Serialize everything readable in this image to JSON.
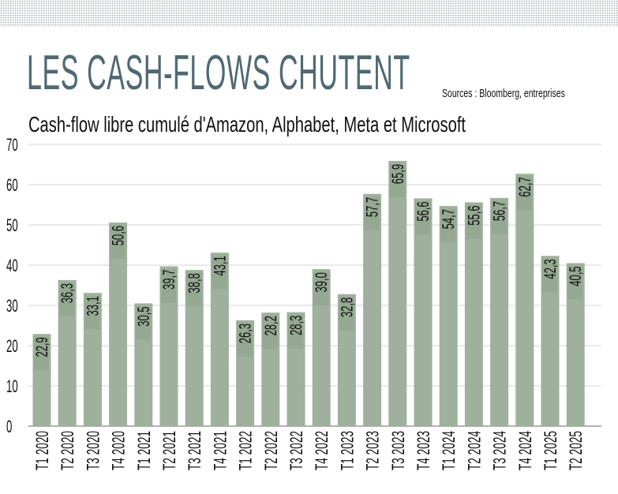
{
  "chart_data": {
    "type": "bar",
    "title": "LES CASH-FLOWS CHUTENT",
    "subtitle": "Cash-flow libre cumulé d'Amazon, Alphabet, Meta et Microsoft",
    "source": "Sources : Bloomberg, entreprises",
    "xlabel": "",
    "ylabel": "",
    "ylim": [
      0,
      70
    ],
    "yticks": [
      0,
      10,
      20,
      30,
      40,
      50,
      60,
      70
    ],
    "grid": true,
    "bar_color": "#9fb19d",
    "categories": [
      "T1 2020",
      "T2 2020",
      "T3 2020",
      "T4 2020",
      "T1 2021",
      "T2 2021",
      "T3 2021",
      "T4 2021",
      "T1 2022",
      "T2 2022",
      "T3 2022",
      "T4 2022",
      "T1 2023",
      "T2 2023",
      "T3 2023",
      "T4 2023",
      "T1 2024",
      "T2 2024",
      "T3 2024",
      "T4 2024",
      "T1 2025",
      "T2 2025"
    ],
    "values": [
      22.9,
      36.3,
      33.1,
      50.6,
      30.5,
      39.7,
      38.8,
      43.1,
      26.3,
      28.2,
      28.3,
      39.0,
      32.8,
      57.7,
      65.9,
      56.6,
      54.7,
      55.6,
      56.7,
      62.7,
      42.3,
      40.5
    ],
    "labels": [
      "22,9",
      "36,3",
      "33,1",
      "50,6",
      "30,5",
      "39,7",
      "38,8",
      "43,1",
      "26,3",
      "28,2",
      "28,3",
      "39,0",
      "32,8",
      "57,7",
      "65,9",
      "56,6",
      "54,7",
      "55,6",
      "56,7",
      "62,7",
      "42,3",
      "40,5"
    ]
  }
}
